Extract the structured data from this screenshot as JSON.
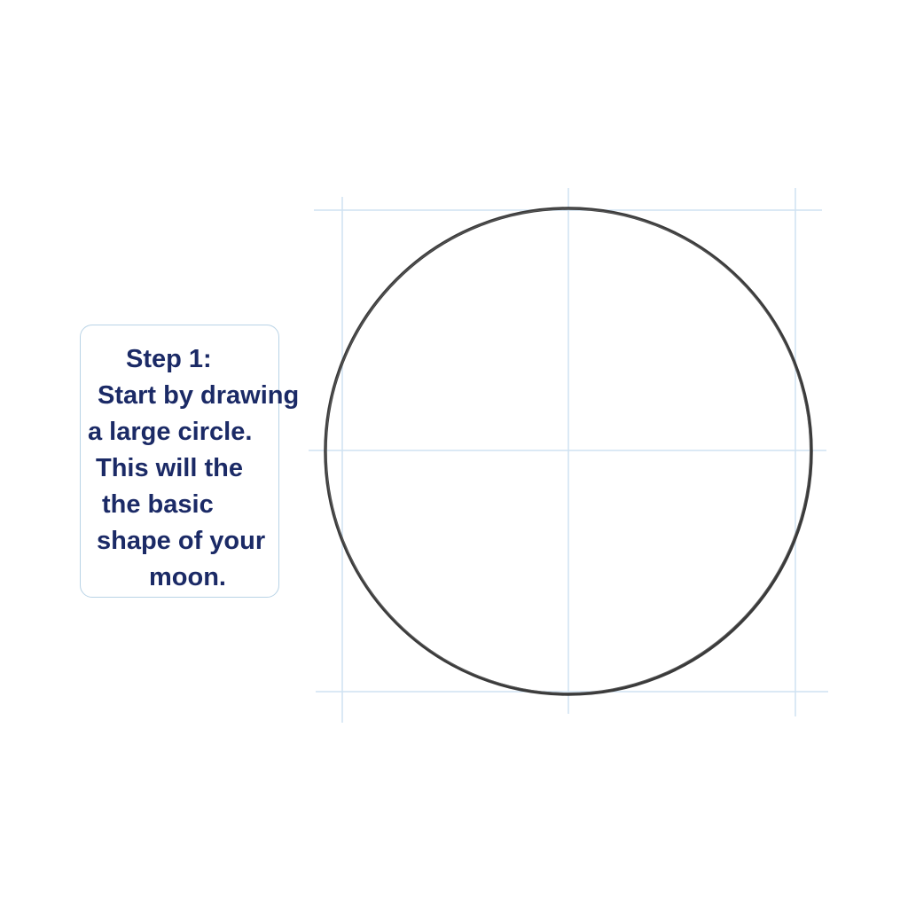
{
  "step_card": {
    "lines": [
      "Step 1:",
      "Start by drawing",
      "a large circle.",
      "This will the",
      "the basic",
      "shape of your",
      "moon."
    ]
  },
  "colors": {
    "text": "#1b2a66",
    "card_border": "#b9d3e6",
    "guide_line": "#cfe2f2",
    "circle_stroke": "#3a3a3a"
  }
}
